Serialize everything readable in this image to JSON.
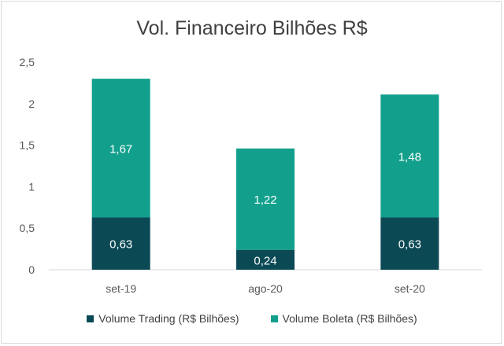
{
  "chart_data": {
    "type": "bar",
    "stacked": true,
    "title": "Vol. Financeiro Bilhões R$",
    "categories": [
      "set-19",
      "ago-20",
      "set-20"
    ],
    "series": [
      {
        "name": "Volume Trading (R$ Bilhões)",
        "color": "#0b4a55",
        "values": [
          0.63,
          0.24,
          0.63
        ],
        "labels": [
          "0,63",
          "0,24",
          "0,63"
        ]
      },
      {
        "name": "Volume Boleta (R$ Bilhões)",
        "color": "#12a08c",
        "values": [
          1.67,
          1.22,
          1.48
        ],
        "labels": [
          "1,67",
          "1,22",
          "1,48"
        ]
      }
    ],
    "yticks": [
      "0",
      "0,5",
      "1",
      "1,5",
      "2",
      "2,5"
    ],
    "ylim": [
      0,
      2.5
    ],
    "grid": false,
    "legend_position": "bottom"
  }
}
